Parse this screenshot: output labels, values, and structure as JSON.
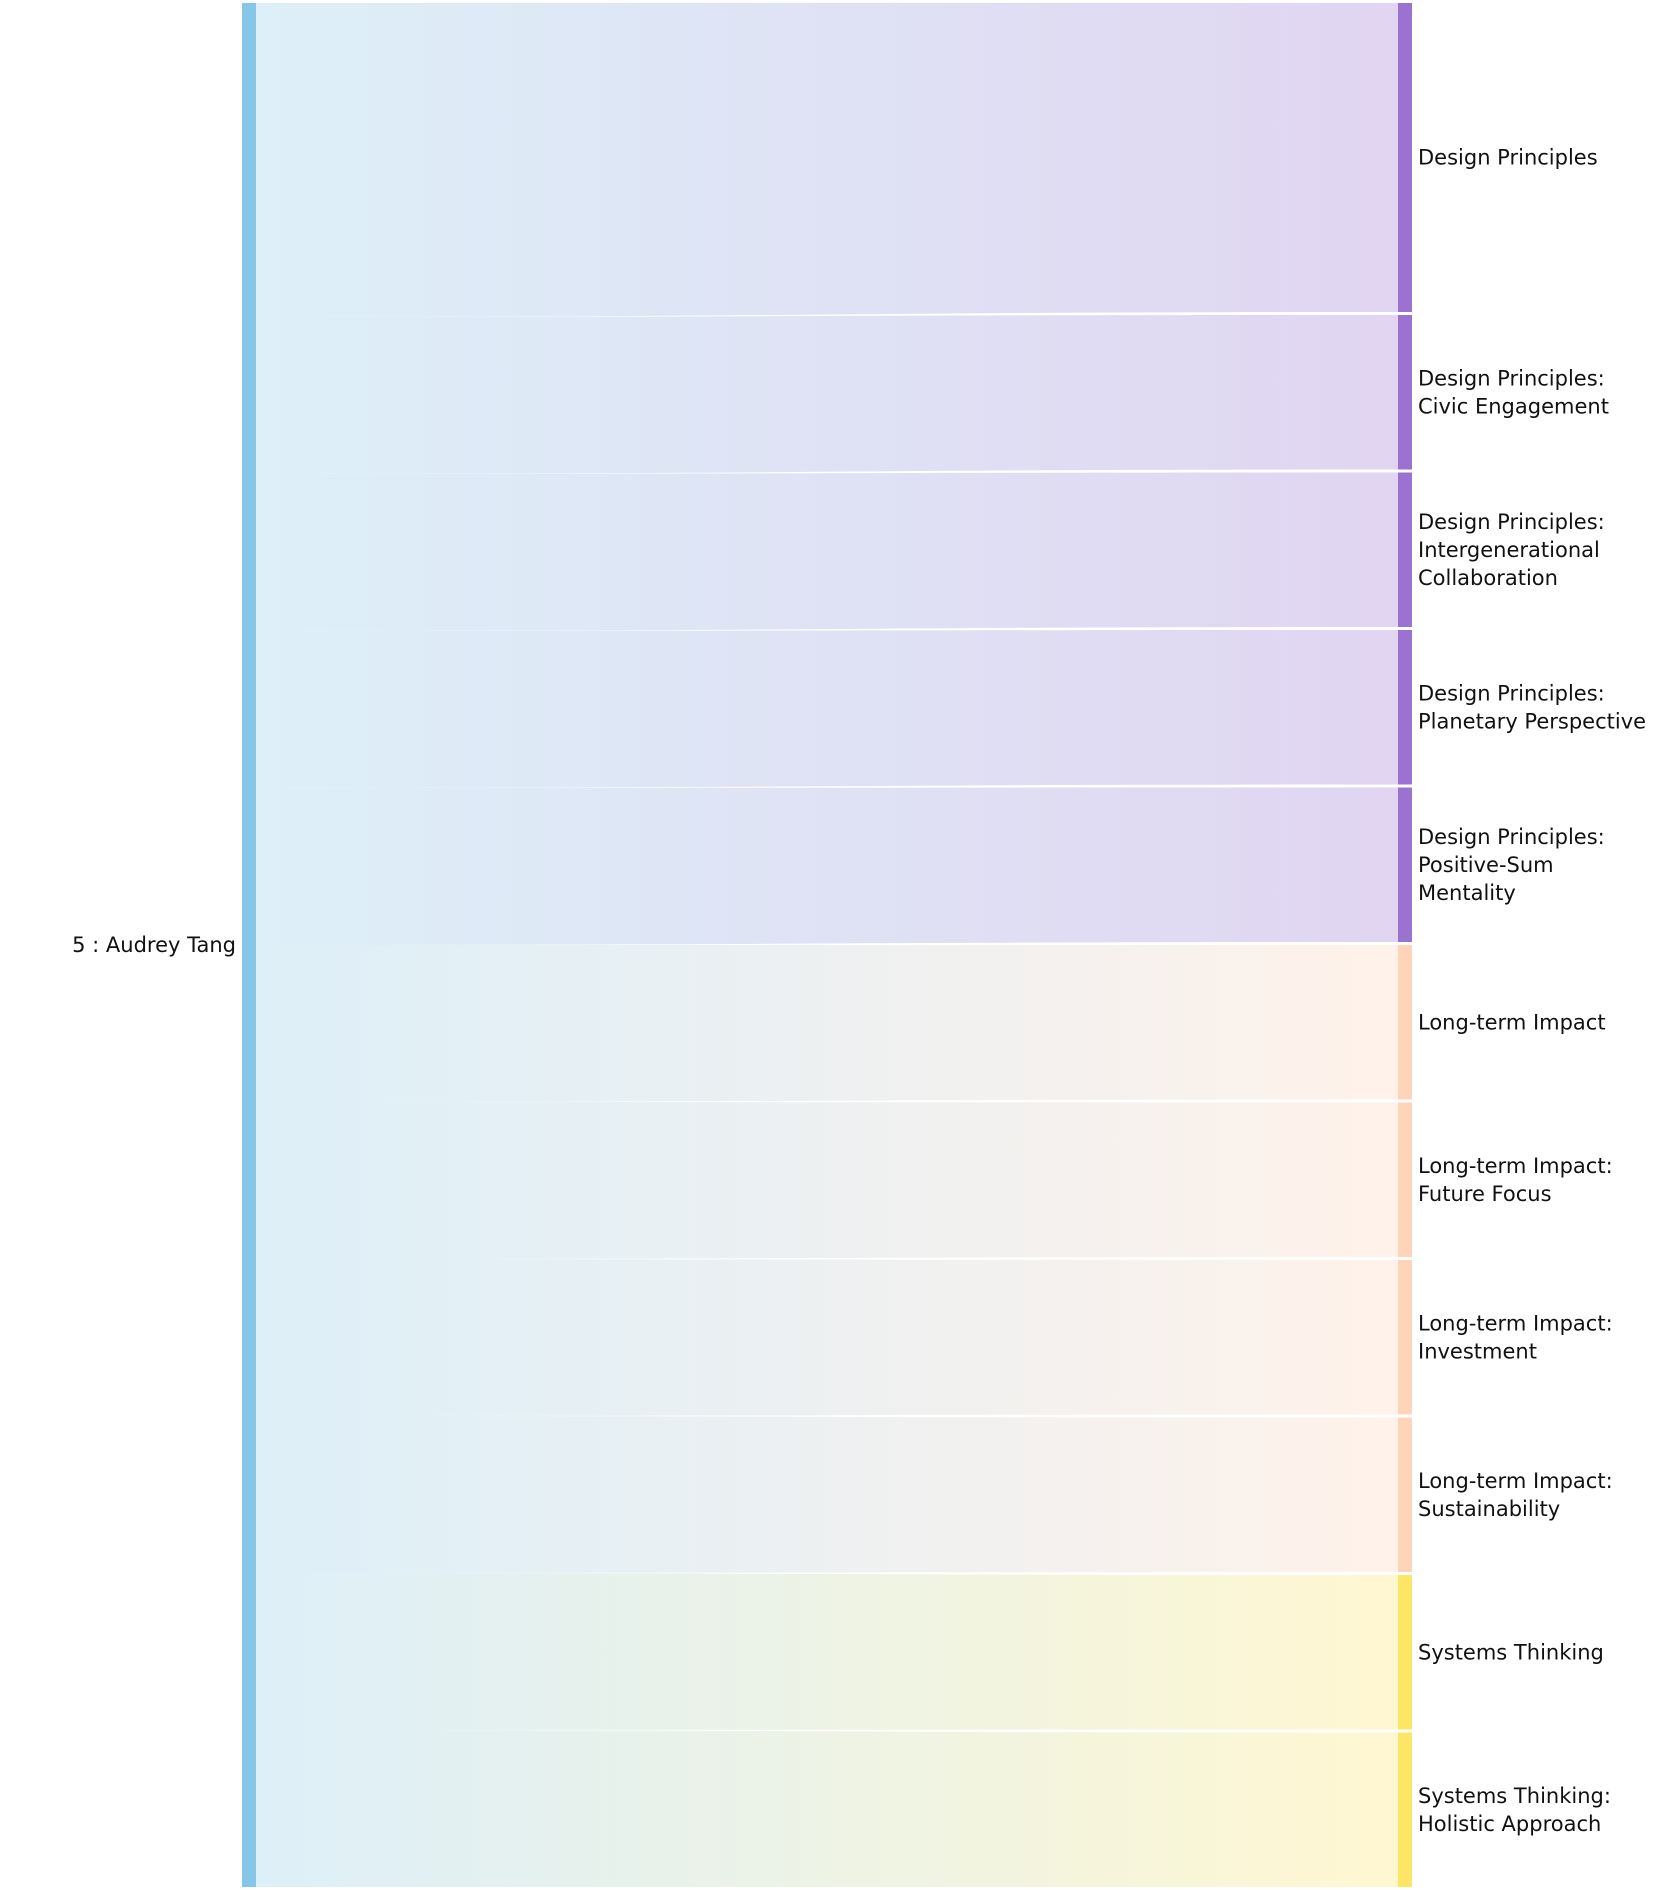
{
  "chart_data": {
    "type": "sankey",
    "source": {
      "name": "5 : Audrey Tang",
      "color": "#86c6e6"
    },
    "targets": [
      {
        "label": [
          "Design Principles"
        ],
        "value": 2,
        "color": "#9b72d0"
      },
      {
        "label": [
          "Design Principles:",
          "Civic Engagement"
        ],
        "value": 1,
        "color": "#9b72d0"
      },
      {
        "label": [
          "Design Principles:",
          "Intergenerational",
          "Collaboration"
        ],
        "value": 1,
        "color": "#9b72d0"
      },
      {
        "label": [
          "Design Principles:",
          "Planetary Perspective"
        ],
        "value": 1,
        "color": "#9b72d0"
      },
      {
        "label": [
          "Design Principles:",
          "Positive-Sum",
          "Mentality"
        ],
        "value": 1,
        "color": "#9b72d0"
      },
      {
        "label": [
          "Long-term Impact"
        ],
        "value": 1,
        "color": "#ffd4b8"
      },
      {
        "label": [
          "Long-term Impact:",
          "Future Focus"
        ],
        "value": 1,
        "color": "#ffd4b8"
      },
      {
        "label": [
          "Long-term Impact:",
          "Investment"
        ],
        "value": 1,
        "color": "#ffd4b8"
      },
      {
        "label": [
          "Long-term Impact:",
          "Sustainability"
        ],
        "value": 1,
        "color": "#ffd4b8"
      },
      {
        "label": [
          "Systems Thinking"
        ],
        "value": 1,
        "color": "#ffe566"
      },
      {
        "label": [
          "Systems Thinking:",
          "Holistic Approach"
        ],
        "value": 1,
        "color": "#ffe566"
      }
    ]
  }
}
